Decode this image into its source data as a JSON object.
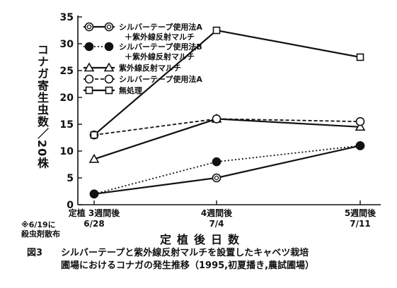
{
  "chart_data": {
    "type": "line",
    "categories": [
      "定植 3週間後",
      "4週間後",
      "5週間後"
    ],
    "dates": [
      "6/28",
      "7/4",
      "7/11"
    ],
    "ylabel": "コナガ寄生虫数／20株",
    "xlabel": "定植後日数",
    "ylim": [
      0,
      35
    ],
    "yticks": [
      0,
      5,
      10,
      15,
      20,
      25,
      30,
      35
    ],
    "series": [
      {
        "name": "シルバーテープ使用法A ＋紫外線反射マルチ",
        "name_lines": [
          "シルバーテープ使用法A",
          "＋紫外線反射マルチ"
        ],
        "values": [
          2,
          5,
          11
        ],
        "marker": "double-circle",
        "linestyle": "solid"
      },
      {
        "name": "シルバーテープ使用法B ＋紫外線反射マルチ",
        "name_lines": [
          "シルバーテープ使用法B",
          "＋紫外線反射マルチ"
        ],
        "values": [
          2,
          8,
          11
        ],
        "marker": "filled-circle",
        "linestyle": "dotted"
      },
      {
        "name": "紫外線反射マルチ",
        "name_lines": [
          "紫外線反射マルチ"
        ],
        "values": [
          8.5,
          16,
          14.5
        ],
        "marker": "triangle",
        "linestyle": "solid"
      },
      {
        "name": "シルバーテープ使用法A",
        "name_lines": [
          "シルバーテープ使用法A"
        ],
        "values": [
          13,
          16,
          15.5
        ],
        "marker": "open-circle",
        "linestyle": "dashed"
      },
      {
        "name": "無処理",
        "name_lines": [
          "無処理"
        ],
        "values": [
          13,
          32.5,
          27.5
        ],
        "marker": "square",
        "linestyle": "solid"
      }
    ],
    "legend_position": "top-left"
  },
  "note": {
    "line1": "※6/19に",
    "line2": "殺虫剤散布"
  },
  "caption": {
    "number": "図3",
    "line1": "シルバーテープと紫外線反射マルチを設置したキャベツ栽培",
    "line2": "圃場におけるコナガの発生推移（1995,初夏播き,農試圃場）"
  },
  "colors": {
    "ink": "#111111",
    "background": "#ffffff"
  }
}
